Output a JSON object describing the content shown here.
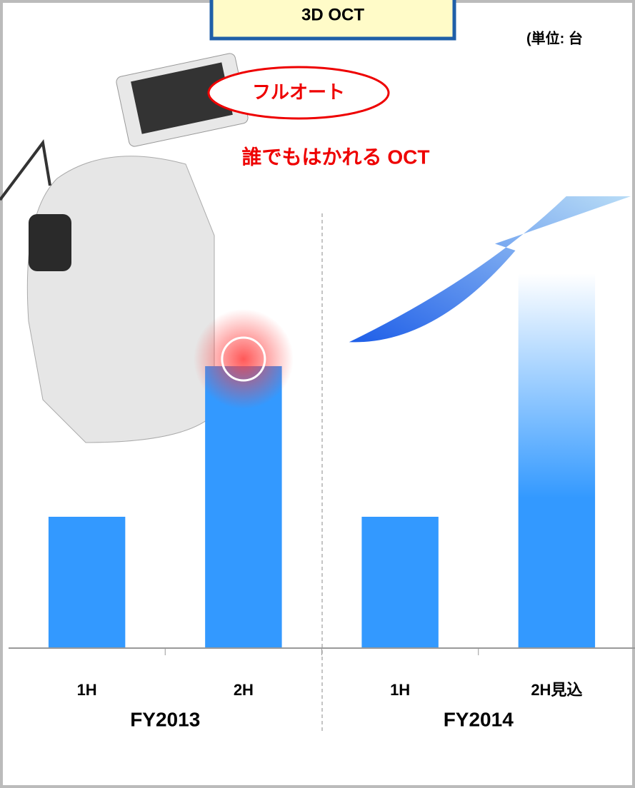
{
  "chart_data": {
    "type": "bar",
    "title": "3D OCT",
    "unit_label": "(単位: 台",
    "annotations": [
      "フルオート",
      "誰でもはかれる OCT"
    ],
    "categories": [
      "1H",
      "2H",
      "1H",
      "2H見込"
    ],
    "groups": [
      "FY2013",
      "FY2014"
    ],
    "values": [
      184,
      395,
      184,
      525
    ],
    "color": "#3399ff",
    "ylim": [
      0,
      650
    ]
  }
}
